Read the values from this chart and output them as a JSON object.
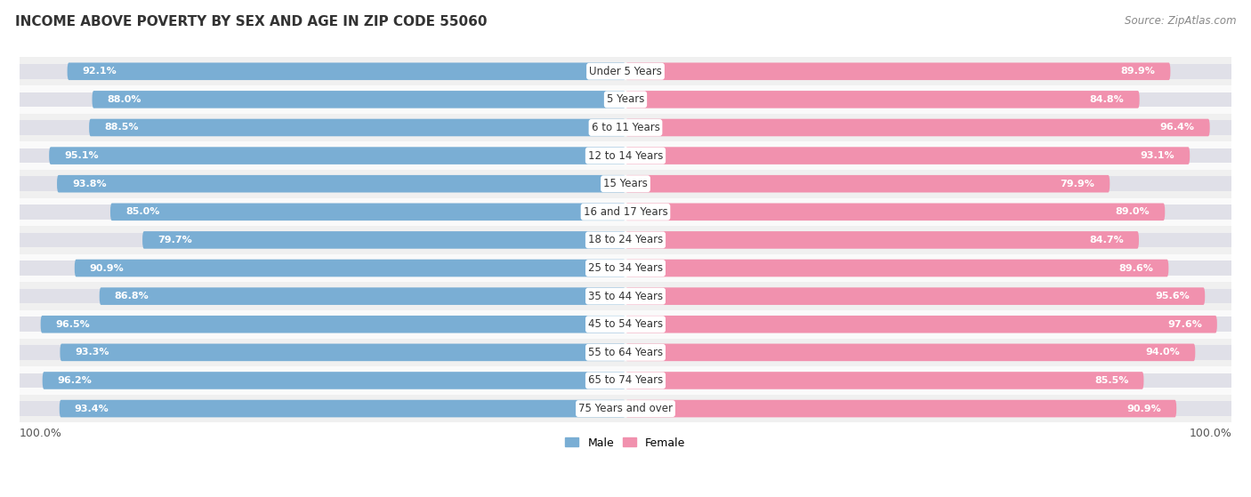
{
  "title": "INCOME ABOVE POVERTY BY SEX AND AGE IN ZIP CODE 55060",
  "source": "Source: ZipAtlas.com",
  "categories": [
    "Under 5 Years",
    "5 Years",
    "6 to 11 Years",
    "12 to 14 Years",
    "15 Years",
    "16 and 17 Years",
    "18 to 24 Years",
    "25 to 34 Years",
    "35 to 44 Years",
    "45 to 54 Years",
    "55 to 64 Years",
    "65 to 74 Years",
    "75 Years and over"
  ],
  "male_values": [
    92.1,
    88.0,
    88.5,
    95.1,
    93.8,
    85.0,
    79.7,
    90.9,
    86.8,
    96.5,
    93.3,
    96.2,
    93.4
  ],
  "female_values": [
    89.9,
    84.8,
    96.4,
    93.1,
    79.9,
    89.0,
    84.7,
    89.6,
    95.6,
    97.6,
    94.0,
    85.5,
    90.9
  ],
  "male_color": "#7aaed4",
  "female_color": "#f191ae",
  "male_light": "#b8d4ea",
  "female_light": "#f7c4d2",
  "male_label": "Male",
  "female_label": "Female",
  "background_color": "#ffffff",
  "row_bg_odd": "#f0f0f0",
  "row_bg_even": "#fafafa",
  "track_color": "#e0e0e8",
  "axis_label_left": "100.0%",
  "axis_label_right": "100.0%",
  "title_fontsize": 11,
  "source_fontsize": 8.5,
  "max_val": 100.0
}
